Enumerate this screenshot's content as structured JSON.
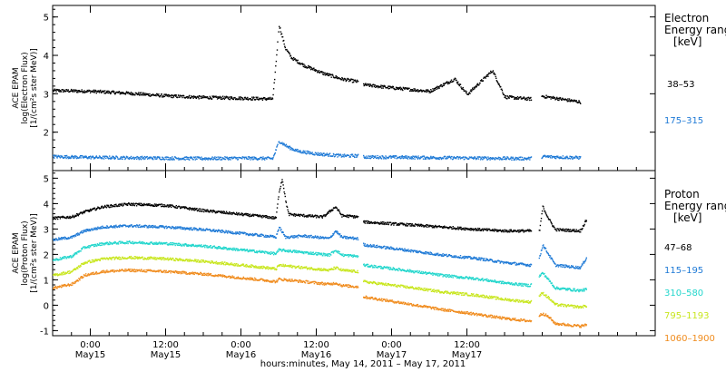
{
  "chart_data": [
    {
      "type": "scatter",
      "panel": "electron",
      "ylabel_lines": [
        "ACE EPAM",
        "log(Electron Flux)",
        "[1/(cm²s ster MeV)]"
      ],
      "ylim": [
        1.0,
        5.3
      ],
      "yticks": [
        2,
        3,
        4,
        5
      ],
      "legend_title_lines": [
        "Electron",
        "Energy range",
        "[keV]"
      ],
      "series": [
        {
          "name": "38–53",
          "color": "#000000",
          "points": [
            [
              0,
              3.1
            ],
            [
              6,
              3.08
            ],
            [
              12,
              3.03
            ],
            [
              18,
              2.96
            ],
            [
              24,
              2.92
            ],
            [
              30,
              2.9
            ],
            [
              35,
              2.88
            ],
            [
              36,
              4.8
            ],
            [
              37,
              4.2
            ],
            [
              38,
              3.95
            ],
            [
              40,
              3.75
            ],
            [
              43,
              3.55
            ],
            [
              46,
              3.4
            ],
            [
              48.5,
              3.33
            ],
            [
              49.5,
              3.25
            ],
            [
              54,
              3.17
            ],
            [
              60,
              3.08
            ],
            [
              64,
              3.4
            ],
            [
              66,
              3.0
            ],
            [
              70,
              3.62
            ],
            [
              72,
              2.93
            ],
            [
              76,
              2.88
            ],
            [
              78,
              2.95
            ],
            [
              82,
              2.85
            ],
            [
              84,
              2.8
            ]
          ],
          "gaps": [
            [
              35.8,
              35.9
            ],
            [
              48.6,
              49.4
            ],
            [
              76.2,
              77.8
            ]
          ]
        },
        {
          "name": "175–315",
          "color": "#1f7ad6",
          "points": [
            [
              0,
              1.38
            ],
            [
              6,
              1.36
            ],
            [
              12,
              1.35
            ],
            [
              18,
              1.34
            ],
            [
              24,
              1.33
            ],
            [
              30,
              1.34
            ],
            [
              35,
              1.33
            ],
            [
              36,
              1.78
            ],
            [
              37.5,
              1.62
            ],
            [
              39,
              1.52
            ],
            [
              42,
              1.45
            ],
            [
              46,
              1.4
            ],
            [
              48.5,
              1.4
            ],
            [
              49.5,
              1.37
            ],
            [
              56,
              1.36
            ],
            [
              62,
              1.35
            ],
            [
              68,
              1.34
            ],
            [
              74,
              1.33
            ],
            [
              76,
              1.33
            ],
            [
              78,
              1.38
            ],
            [
              82,
              1.36
            ],
            [
              84,
              1.35
            ]
          ],
          "gaps": [
            [
              35.8,
              35.9
            ],
            [
              48.6,
              49.4
            ],
            [
              76.2,
              77.8
            ]
          ]
        }
      ]
    },
    {
      "type": "scatter",
      "panel": "proton",
      "ylabel_lines": [
        "ACE EPAM",
        "log(Proton Flux)",
        "[1/(cm²s ster MeV)]"
      ],
      "ylim": [
        -1.2,
        5.3
      ],
      "yticks": [
        -1,
        0,
        1,
        2,
        3,
        4,
        5
      ],
      "legend_title_lines": [
        "Proton",
        "Energy range",
        "[keV]"
      ],
      "series": [
        {
          "name": "47–68",
          "color": "#000000",
          "points": [
            [
              0,
              3.45
            ],
            [
              3,
              3.5
            ],
            [
              5,
              3.7
            ],
            [
              8,
              3.9
            ],
            [
              12,
              4.0
            ],
            [
              18,
              3.95
            ],
            [
              24,
              3.75
            ],
            [
              30,
              3.6
            ],
            [
              34,
              3.5
            ],
            [
              35.5,
              3.45
            ],
            [
              36,
              4.5
            ],
            [
              36.5,
              5.0
            ],
            [
              37,
              4.2
            ],
            [
              37.5,
              3.6
            ],
            [
              40,
              3.55
            ],
            [
              43,
              3.5
            ],
            [
              45,
              3.9
            ],
            [
              46,
              3.55
            ],
            [
              48.5,
              3.5
            ],
            [
              49.5,
              3.3
            ],
            [
              56,
              3.2
            ],
            [
              62,
              3.1
            ],
            [
              68,
              3.0
            ],
            [
              72,
              2.95
            ],
            [
              76,
              2.95
            ],
            [
              77.5,
              2.95
            ],
            [
              78,
              3.9
            ],
            [
              79,
              3.4
            ],
            [
              80,
              3.0
            ],
            [
              84,
              2.95
            ],
            [
              85,
              3.4
            ]
          ],
          "gaps": [
            [
              48.6,
              49.4
            ],
            [
              76.2,
              77.4
            ]
          ]
        },
        {
          "name": "115–195",
          "color": "#1f7ad6",
          "points": [
            [
              0,
              2.6
            ],
            [
              3,
              2.7
            ],
            [
              5,
              2.95
            ],
            [
              8,
              3.1
            ],
            [
              12,
              3.15
            ],
            [
              18,
              3.1
            ],
            [
              24,
              3.0
            ],
            [
              30,
              2.85
            ],
            [
              34,
              2.75
            ],
            [
              35.5,
              2.7
            ],
            [
              36,
              3.1
            ],
            [
              37,
              2.7
            ],
            [
              40,
              2.75
            ],
            [
              44,
              2.65
            ],
            [
              45,
              2.95
            ],
            [
              46,
              2.7
            ],
            [
              48.5,
              2.65
            ],
            [
              49.5,
              2.4
            ],
            [
              56,
              2.2
            ],
            [
              62,
              2.0
            ],
            [
              68,
              1.85
            ],
            [
              72,
              1.7
            ],
            [
              76,
              1.6
            ],
            [
              77.5,
              1.9
            ],
            [
              78,
              2.4
            ],
            [
              79,
              2.0
            ],
            [
              80,
              1.6
            ],
            [
              84,
              1.5
            ],
            [
              85,
              1.9
            ]
          ],
          "gaps": [
            [
              48.6,
              49.4
            ],
            [
              76.2,
              77.4
            ]
          ]
        },
        {
          "name": "310–580",
          "color": "#22d6cc",
          "points": [
            [
              0,
              1.8
            ],
            [
              3,
              1.95
            ],
            [
              5,
              2.3
            ],
            [
              8,
              2.45
            ],
            [
              12,
              2.5
            ],
            [
              18,
              2.45
            ],
            [
              24,
              2.35
            ],
            [
              30,
              2.2
            ],
            [
              34,
              2.1
            ],
            [
              35.5,
              2.05
            ],
            [
              36,
              2.2
            ],
            [
              40,
              2.1
            ],
            [
              44,
              2.0
            ],
            [
              45,
              2.2
            ],
            [
              46,
              2.0
            ],
            [
              48.5,
              1.95
            ],
            [
              49.5,
              1.6
            ],
            [
              56,
              1.4
            ],
            [
              62,
              1.2
            ],
            [
              68,
              1.05
            ],
            [
              72,
              0.9
            ],
            [
              76,
              0.8
            ],
            [
              78,
              1.3
            ],
            [
              79,
              1.0
            ],
            [
              80,
              0.7
            ],
            [
              84,
              0.6
            ],
            [
              85,
              0.65
            ]
          ],
          "gaps": [
            [
              48.6,
              49.4
            ],
            [
              76.2,
              77.4
            ]
          ]
        },
        {
          "name": "795–1193",
          "color": "#c8e61e",
          "points": [
            [
              0,
              1.2
            ],
            [
              3,
              1.35
            ],
            [
              5,
              1.7
            ],
            [
              8,
              1.85
            ],
            [
              12,
              1.9
            ],
            [
              18,
              1.85
            ],
            [
              24,
              1.75
            ],
            [
              30,
              1.6
            ],
            [
              34,
              1.5
            ],
            [
              35.5,
              1.45
            ],
            [
              36,
              1.6
            ],
            [
              40,
              1.5
            ],
            [
              44,
              1.4
            ],
            [
              45,
              1.5
            ],
            [
              46,
              1.4
            ],
            [
              48.5,
              1.35
            ],
            [
              49.5,
              0.95
            ],
            [
              56,
              0.75
            ],
            [
              62,
              0.55
            ],
            [
              68,
              0.4
            ],
            [
              72,
              0.25
            ],
            [
              76,
              0.15
            ],
            [
              78,
              0.5
            ],
            [
              79,
              0.3
            ],
            [
              80,
              0.05
            ],
            [
              84,
              -0.05
            ],
            [
              85,
              0.0
            ]
          ],
          "gaps": [
            [
              48.6,
              49.4
            ],
            [
              76.2,
              77.4
            ]
          ]
        },
        {
          "name": "1060–1900",
          "color": "#f08c1e",
          "points": [
            [
              0,
              0.7
            ],
            [
              3,
              0.85
            ],
            [
              5,
              1.2
            ],
            [
              8,
              1.35
            ],
            [
              12,
              1.4
            ],
            [
              18,
              1.35
            ],
            [
              24,
              1.25
            ],
            [
              30,
              1.1
            ],
            [
              34,
              1.0
            ],
            [
              35.5,
              0.95
            ],
            [
              36,
              1.05
            ],
            [
              40,
              0.95
            ],
            [
              44,
              0.85
            ],
            [
              45,
              0.9
            ],
            [
              46,
              0.8
            ],
            [
              48.5,
              0.75
            ],
            [
              49.5,
              0.35
            ],
            [
              56,
              0.1
            ],
            [
              62,
              -0.15
            ],
            [
              68,
              -0.35
            ],
            [
              72,
              -0.5
            ],
            [
              76,
              -0.6
            ],
            [
              78,
              -0.3
            ],
            [
              79,
              -0.45
            ],
            [
              80,
              -0.7
            ],
            [
              84,
              -0.8
            ],
            [
              85,
              -0.75
            ]
          ],
          "gaps": [
            [
              48.6,
              49.4
            ],
            [
              76.2,
              77.4
            ]
          ]
        }
      ]
    }
  ],
  "x_axis": {
    "unit": "hours since 2011-05-14 18:00 UT",
    "range": [
      0,
      96
    ],
    "ticks": [
      {
        "x": 6,
        "time": "0:00",
        "date": "May15"
      },
      {
        "x": 18,
        "time": "12:00",
        "date": "May15"
      },
      {
        "x": 30,
        "time": "0:00",
        "date": "May16"
      },
      {
        "x": 42,
        "time": "12:00",
        "date": "May16"
      },
      {
        "x": 54,
        "time": "0:00",
        "date": "May17"
      },
      {
        "x": 66,
        "time": "12:00",
        "date": "May17"
      }
    ],
    "title": "hours:minutes, May 14, 2011 – May 17, 2011"
  }
}
